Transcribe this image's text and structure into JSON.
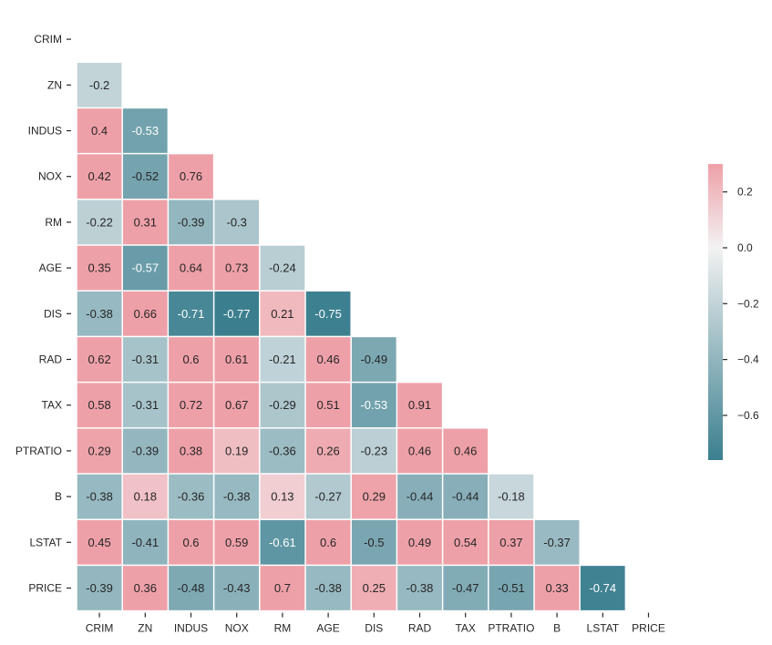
{
  "chart_data": {
    "type": "heatmap",
    "variant": "lower-triangle correlation matrix",
    "variables": [
      "CRIM",
      "ZN",
      "INDUS",
      "NOX",
      "RM",
      "AGE",
      "DIS",
      "RAD",
      "TAX",
      "PTRATIO",
      "B",
      "LSTAT",
      "PRICE"
    ],
    "rows": [
      {
        "label": "CRIM",
        "values": []
      },
      {
        "label": "ZN",
        "values": [
          -0.2
        ]
      },
      {
        "label": "INDUS",
        "values": [
          0.4,
          -0.53
        ]
      },
      {
        "label": "NOX",
        "values": [
          0.42,
          -0.52,
          0.76
        ]
      },
      {
        "label": "RM",
        "values": [
          -0.22,
          0.31,
          -0.39,
          -0.3
        ]
      },
      {
        "label": "AGE",
        "values": [
          0.35,
          -0.57,
          0.64,
          0.73,
          -0.24
        ]
      },
      {
        "label": "DIS",
        "values": [
          -0.38,
          0.66,
          -0.71,
          -0.77,
          0.21,
          -0.75
        ]
      },
      {
        "label": "RAD",
        "values": [
          0.62,
          -0.31,
          0.6,
          0.61,
          -0.21,
          0.46,
          -0.49
        ]
      },
      {
        "label": "TAX",
        "values": [
          0.58,
          -0.31,
          0.72,
          0.67,
          -0.29,
          0.51,
          -0.53,
          0.91
        ]
      },
      {
        "label": "PTRATIO",
        "values": [
          0.29,
          -0.39,
          0.38,
          0.19,
          -0.36,
          0.26,
          -0.23,
          0.46,
          0.46
        ]
      },
      {
        "label": "B",
        "values": [
          -0.38,
          0.18,
          -0.36,
          -0.38,
          0.13,
          -0.27,
          0.29,
          -0.44,
          -0.44,
          -0.18
        ]
      },
      {
        "label": "LSTAT",
        "values": [
          0.45,
          -0.41,
          0.6,
          0.59,
          -0.61,
          0.6,
          -0.5,
          0.49,
          0.54,
          0.37,
          -0.37
        ]
      },
      {
        "label": "PRICE",
        "values": [
          -0.39,
          0.36,
          -0.48,
          -0.43,
          0.7,
          -0.38,
          0.25,
          -0.38,
          -0.47,
          -0.51,
          0.33,
          -0.74
        ]
      }
    ],
    "color_scale": {
      "type": "diverging",
      "vmin": -0.76,
      "vmax": 0.3,
      "center": 0,
      "negative_color": "#3b7f8f",
      "center_color": "#f2f2f2",
      "positive_color": "#eea0a8",
      "colorbar_ticks": [
        "0.2",
        "0.0",
        "−0.2",
        "−0.4",
        "−0.6"
      ],
      "colorbar_tick_values": [
        0.2,
        0.0,
        -0.2,
        -0.4,
        -0.6
      ]
    },
    "grid": false,
    "legend": "colorbar-right"
  }
}
